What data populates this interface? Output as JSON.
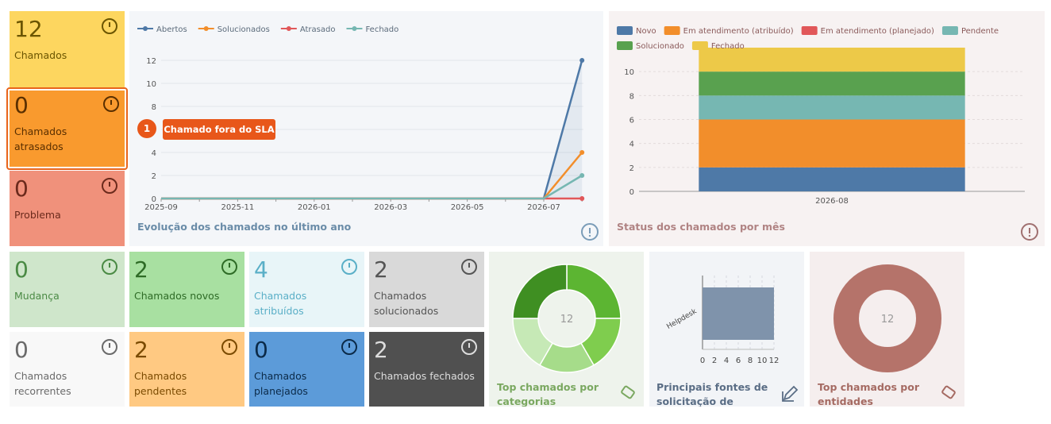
{
  "tiles": [
    {
      "value": 12,
      "label": "Chamados",
      "color": "#fdd65f",
      "text_color": "#6b5500"
    },
    {
      "value": 0,
      "label": "Chamados atrasados",
      "color": "#f99a2e",
      "text_color": "#5a2f00"
    },
    {
      "value": 0,
      "label": "Problema",
      "color": "#f0917b",
      "text_color": "#6b2a1c"
    },
    {
      "value": 0,
      "label": "Mudança",
      "color": "#cfe6cb",
      "text_color": "#4a8a44"
    },
    {
      "value": 2,
      "label": "Chamados novos",
      "color": "#a8e0a1",
      "text_color": "#2e6b26"
    },
    {
      "value": 4,
      "label": "Chamados atribuídos",
      "color": "#e8f5f8",
      "text_color": "#5aafc7"
    },
    {
      "value": 2,
      "label": "Chamados solucionados",
      "color": "#d9d9d9",
      "text_color": "#555555"
    },
    {
      "value": 0,
      "label": "Chamados recorrentes",
      "color": "#f8f8f8",
      "text_color": "#6a6a6a"
    },
    {
      "value": 2,
      "label": "Chamados pendentes",
      "color": "#ffc982",
      "text_color": "#7a4a00"
    },
    {
      "value": 0,
      "label": "Chamados planejados",
      "color": "#5c9bd9",
      "text_color": "#0b2a48"
    },
    {
      "value": 2,
      "label": "Chamados fechados",
      "color": "#505050",
      "text_color": "#dddddd"
    }
  ],
  "annotation": {
    "number": 1,
    "text": "Chamado fora do SLA"
  },
  "chart_data": [
    {
      "type": "line",
      "title": "Evolução dos chamados no último ano",
      "categories": [
        "2025-09",
        null,
        "2025-11",
        null,
        "2026-01",
        null,
        "2026-03",
        null,
        "2026-05",
        null,
        "2026-07",
        null
      ],
      "series": [
        {
          "name": "Abertos",
          "color": "#4e79a7",
          "values": [
            0,
            0,
            0,
            0,
            0,
            0,
            0,
            0,
            0,
            0,
            0,
            12
          ]
        },
        {
          "name": "Solucionados",
          "color": "#f28e2b",
          "values": [
            0,
            0,
            0,
            0,
            0,
            0,
            0,
            0,
            0,
            0,
            0,
            4
          ]
        },
        {
          "name": "Atrasado",
          "color": "#e15759",
          "values": [
            0,
            0,
            0,
            0,
            0,
            0,
            0,
            0,
            0,
            0,
            0,
            0
          ]
        },
        {
          "name": "Fechado",
          "color": "#76b7b2",
          "values": [
            0,
            0,
            0,
            0,
            0,
            0,
            0,
            0,
            0,
            0,
            0,
            2
          ]
        }
      ],
      "ylim": [
        0,
        12
      ],
      "yticks": [
        0,
        2,
        4,
        6,
        8,
        10,
        12
      ],
      "grid": true
    },
    {
      "type": "stacked_bar",
      "title": "Status dos chamados por mês",
      "categories": [
        "2026-08"
      ],
      "series": [
        {
          "name": "Novo",
          "color": "#4e79a7",
          "values": [
            2
          ]
        },
        {
          "name": "Em atendimento (atribuído)",
          "color": "#f28e2b",
          "values": [
            4
          ]
        },
        {
          "name": "Em atendimento (planejado)",
          "color": "#e15759",
          "values": [
            0
          ]
        },
        {
          "name": "Pendente",
          "color": "#76b7b2",
          "values": [
            2
          ]
        },
        {
          "name": "Solucionado",
          "color": "#59a14f",
          "values": [
            2
          ]
        },
        {
          "name": "Fechado",
          "color": "#edc948",
          "values": [
            2
          ]
        }
      ],
      "ylim": [
        0,
        12
      ],
      "yticks": [
        0,
        2,
        4,
        6,
        8,
        10
      ],
      "grid": true
    },
    {
      "type": "donut",
      "title": "Top chamados por categorias",
      "center_label": 12,
      "values": [
        3,
        2,
        2,
        2,
        3
      ],
      "colors": [
        "#5cb532",
        "#7fcd4e",
        "#a6dc8a",
        "#c6e9b6",
        "#3f8f22"
      ]
    },
    {
      "type": "hbar",
      "title": "Principais fontes de solicitação de",
      "categories": [
        "Helpdesk"
      ],
      "values": [
        12
      ],
      "color": "#7f93ab",
      "xlim": [
        0,
        12
      ],
      "xticks": [
        0,
        2,
        4,
        6,
        8,
        10,
        12
      ],
      "grid": true
    },
    {
      "type": "donut",
      "title": "Top chamados por entidades",
      "center_label": 12,
      "values": [
        12
      ],
      "colors": [
        "#b5736a"
      ]
    }
  ]
}
